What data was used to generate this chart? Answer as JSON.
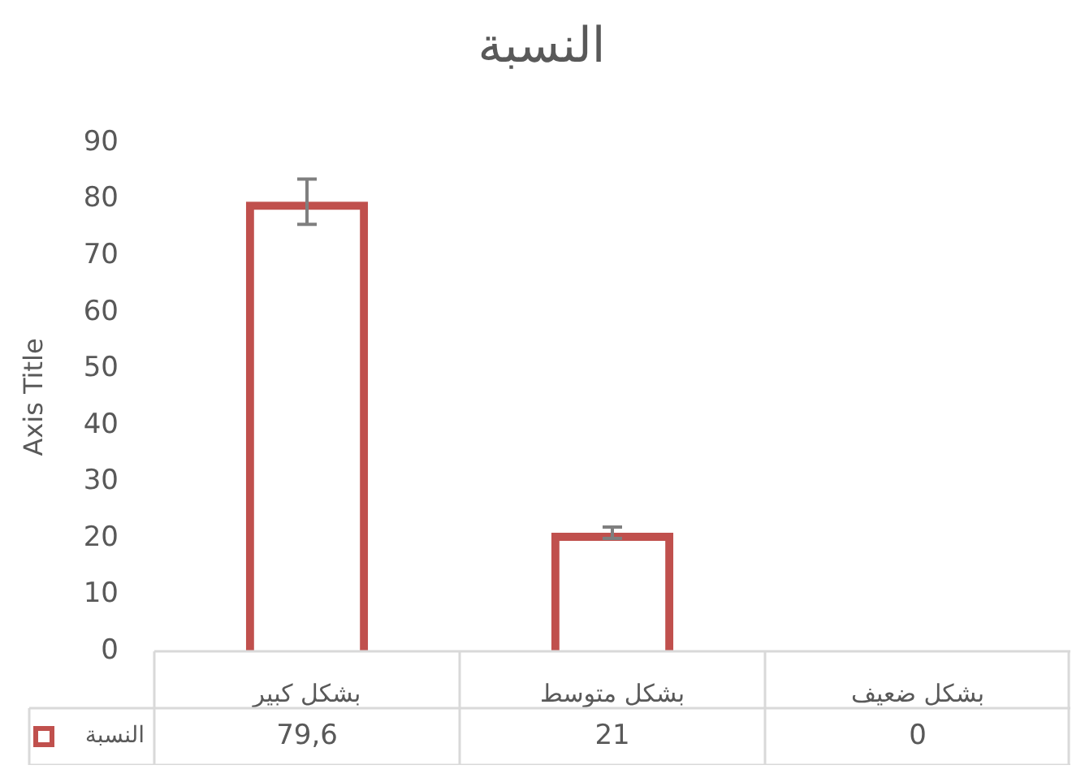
{
  "chart_data": {
    "type": "bar",
    "title": "النسبة",
    "ylabel": "Axis Title",
    "categories": [
      "بشكل كبير",
      "بشكل متوسط",
      "بشكل ضعيف"
    ],
    "series": [
      {
        "name": "النسبة",
        "color": "#c0504d",
        "values": [
          79.6,
          21,
          0
        ],
        "errors": [
          4,
          1,
          null
        ],
        "value_labels": [
          "79,6",
          "21",
          "0"
        ]
      }
    ],
    "ylim": [
      0,
      90
    ],
    "yticks": [
      0,
      10,
      20,
      30,
      40,
      50,
      60,
      70,
      80,
      90
    ],
    "grid": false
  }
}
